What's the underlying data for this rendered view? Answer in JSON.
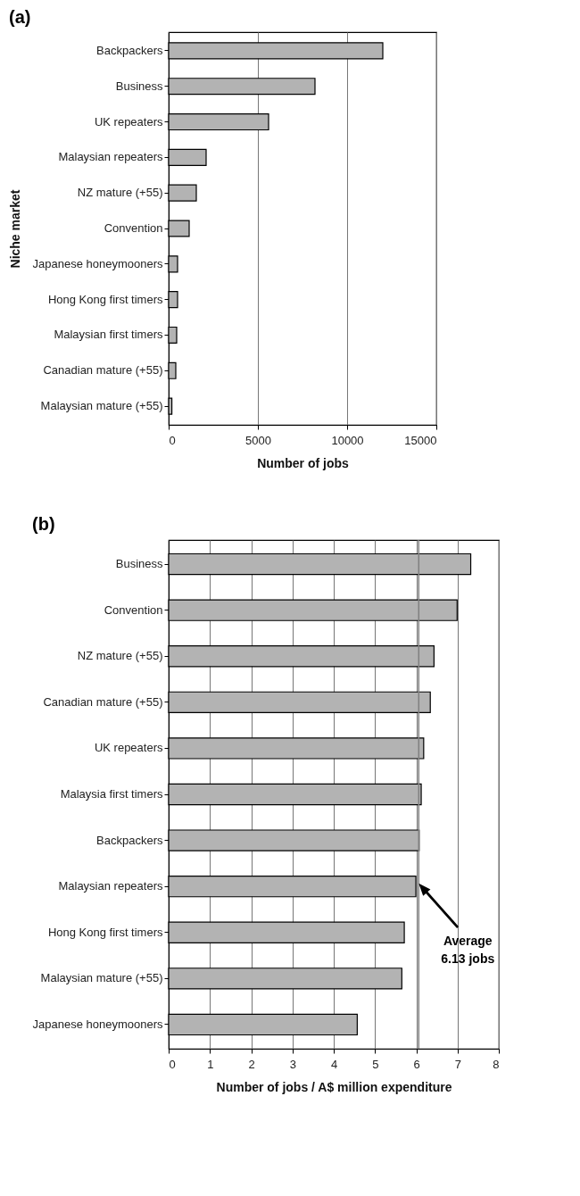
{
  "chart_data": [
    {
      "type": "bar",
      "orientation": "horizontal",
      "title": "(a)",
      "xlabel": "Number of jobs",
      "ylabel": "Niche market",
      "categories": [
        "Backpackers",
        "Business",
        "UK repeaters",
        "Malaysian repeaters",
        "NZ mature (+55)",
        "Convention",
        "Japanese honeymooners",
        "Hong Kong first timers",
        "Malaysian first timers",
        "Canadian mature (+55)",
        "Malaysian mature (+55)"
      ],
      "values": [
        12000,
        8200,
        5600,
        2100,
        1550,
        1150,
        500,
        500,
        450,
        400,
        180
      ],
      "color": "#b3b3b3",
      "xlim": [
        0,
        15000
      ],
      "xticks": [
        0,
        5000,
        10000,
        15000
      ],
      "grid": "x"
    },
    {
      "type": "bar",
      "orientation": "horizontal",
      "title": "(b)",
      "xlabel": "Number of jobs / A$ million expenditure",
      "categories": [
        "Business",
        "Convention",
        "NZ mature (+55)",
        "Canadian mature (+55)",
        "UK repeaters",
        "Malaysia first timers",
        "Backpackers",
        "Malaysian repeaters",
        "Hong Kong first timers",
        "Malaysian mature (+55)",
        "Japanese honeymooners"
      ],
      "values": [
        7.32,
        6.99,
        6.43,
        6.34,
        6.18,
        6.12,
        6.07,
        5.99,
        5.71,
        5.65,
        4.57
      ],
      "color": "#b3b3b3",
      "xlim": [
        0,
        8
      ],
      "xticks": [
        0,
        1,
        2,
        3,
        4,
        5,
        6,
        7,
        8
      ],
      "grid": "x",
      "ref_lines": [
        {
          "axis": "x",
          "value": 6.06,
          "color": "#808080",
          "label": "Average\n6.13 jobs"
        }
      ]
    }
  ]
}
